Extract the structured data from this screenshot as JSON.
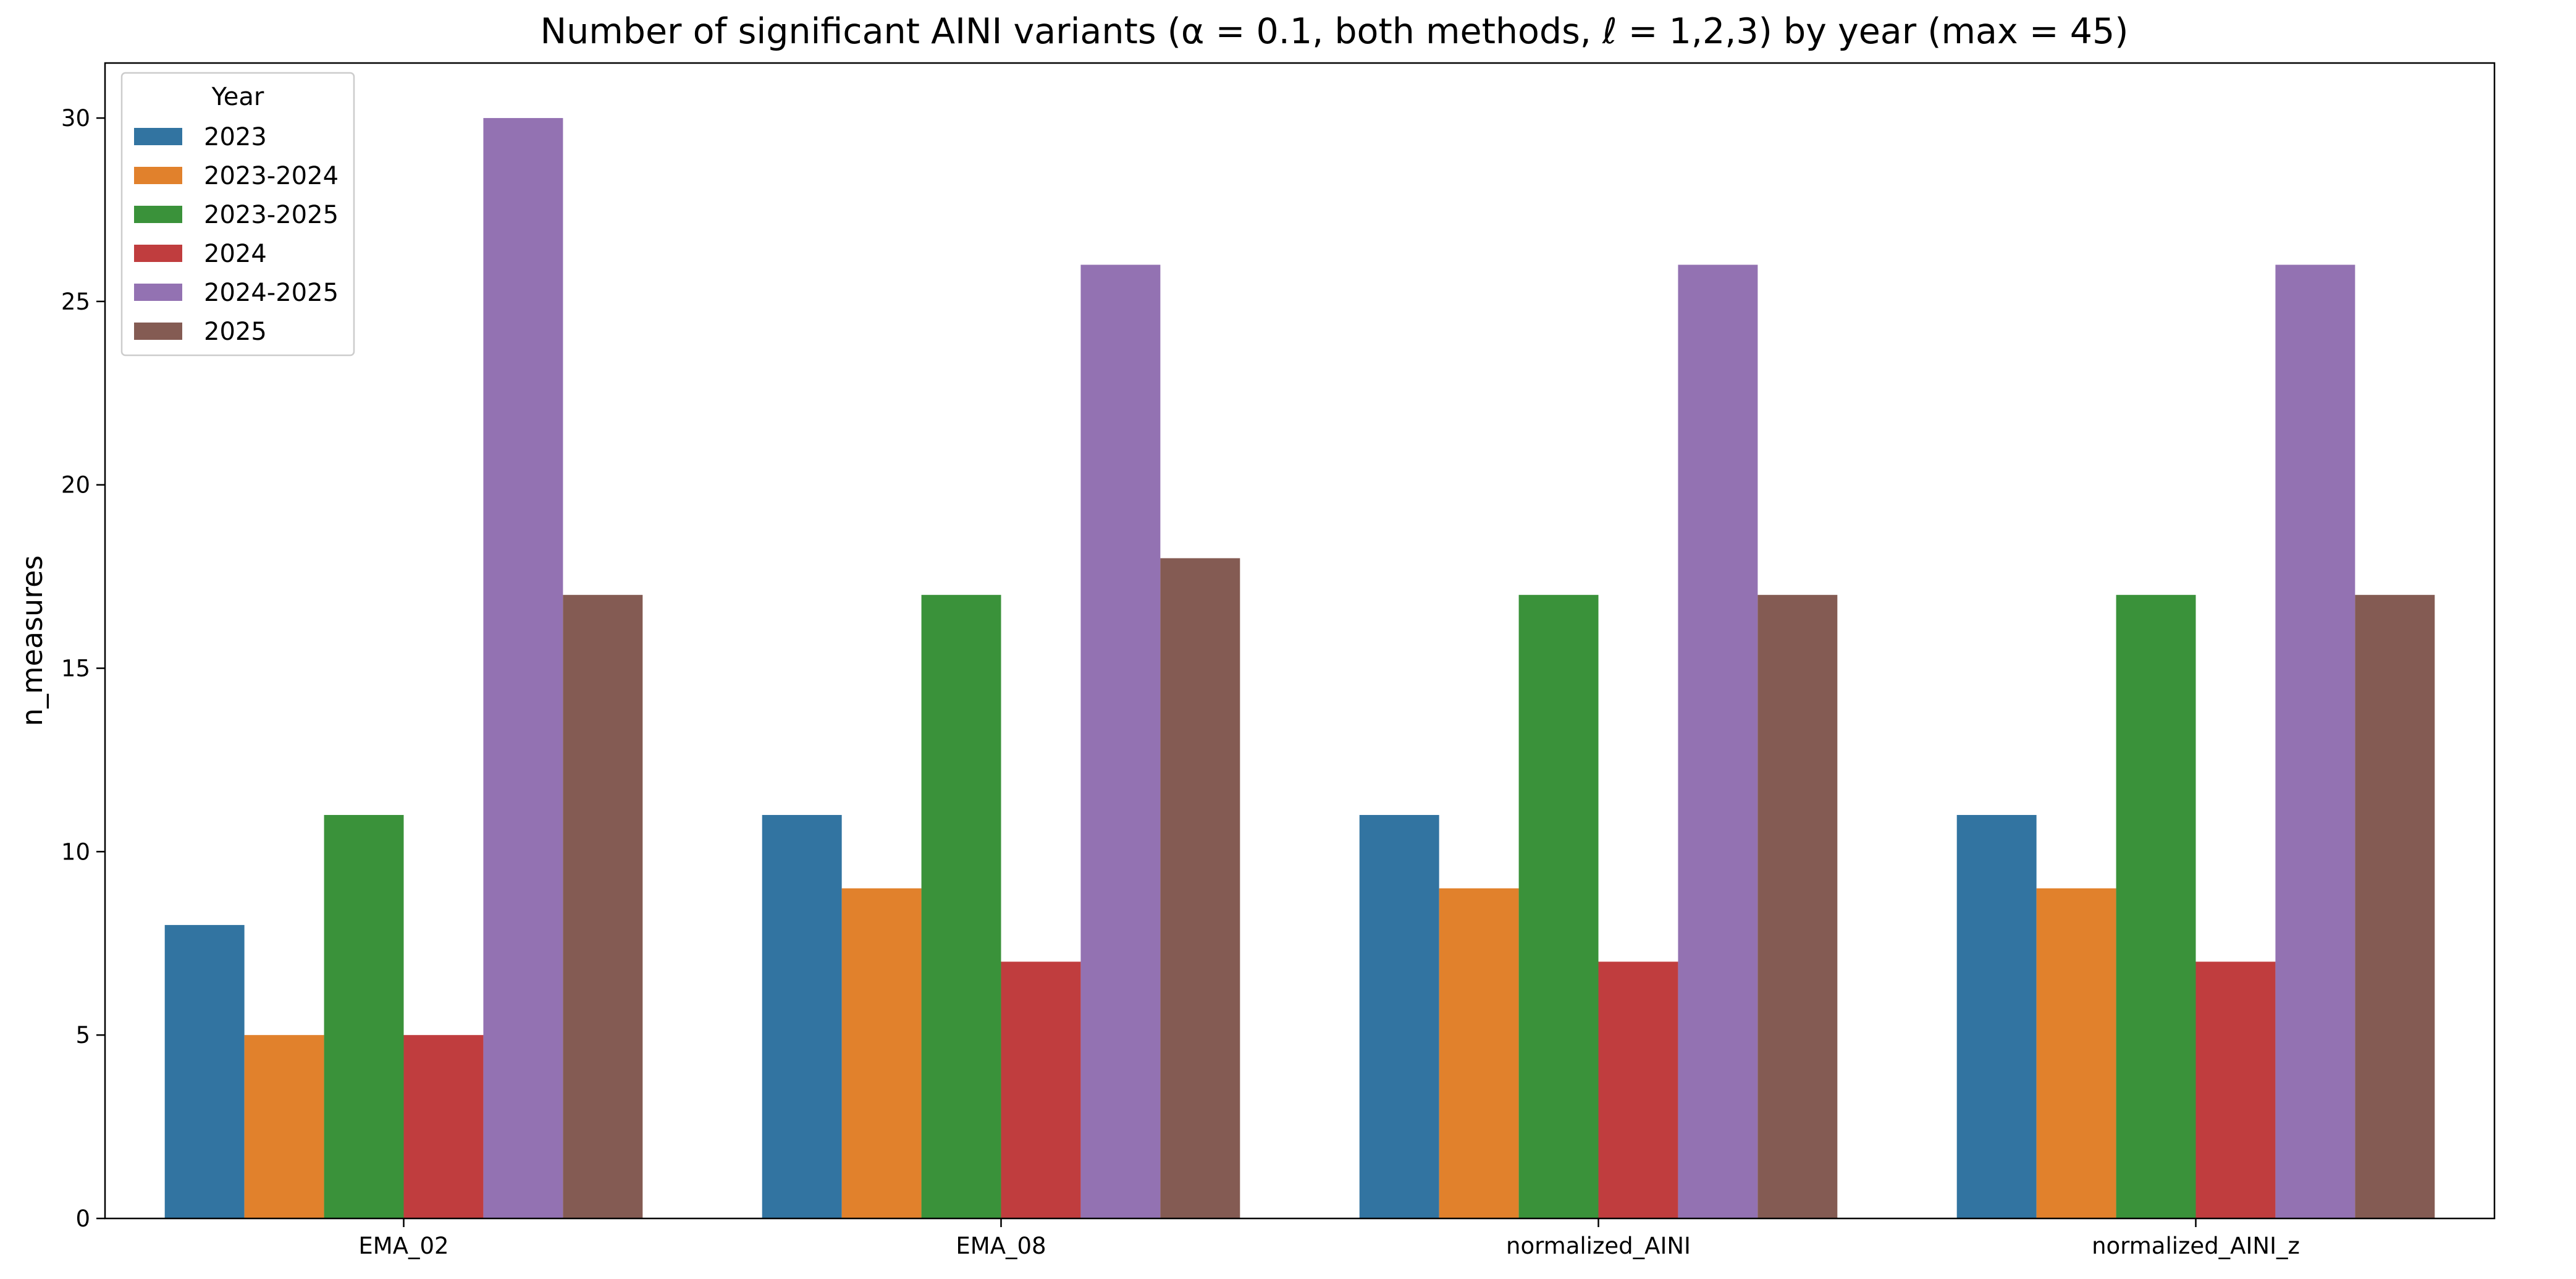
{
  "chart_data": {
    "type": "bar",
    "title": "Number of significant AINI variants (α = 0.1, both methods, ℓ = 1,2,3) by year (max = 45)",
    "xlabel": "",
    "ylabel": "n_measures",
    "categories": [
      "EMA_02",
      "EMA_08",
      "normalized_AINI",
      "normalized_AINI_z"
    ],
    "ylim": [
      0,
      31.5
    ],
    "yticks": [
      0,
      5,
      10,
      15,
      20,
      25,
      30
    ],
    "grid": false,
    "legend": {
      "title": "Year",
      "position": "top-left"
    },
    "series": [
      {
        "name": "2023",
        "color": "#3274a1",
        "values": [
          8,
          11,
          11,
          11
        ]
      },
      {
        "name": "2023-2024",
        "color": "#e1812c",
        "values": [
          5,
          9,
          9,
          9
        ]
      },
      {
        "name": "2023-2025",
        "color": "#3a923a",
        "values": [
          11,
          17,
          17,
          17
        ]
      },
      {
        "name": "2024",
        "color": "#c03d3e",
        "values": [
          5,
          7,
          7,
          7
        ]
      },
      {
        "name": "2024-2025",
        "color": "#9372b2",
        "values": [
          30,
          26,
          26,
          26
        ]
      },
      {
        "name": "2025",
        "color": "#845b53",
        "values": [
          17,
          18,
          17,
          17
        ]
      }
    ]
  }
}
